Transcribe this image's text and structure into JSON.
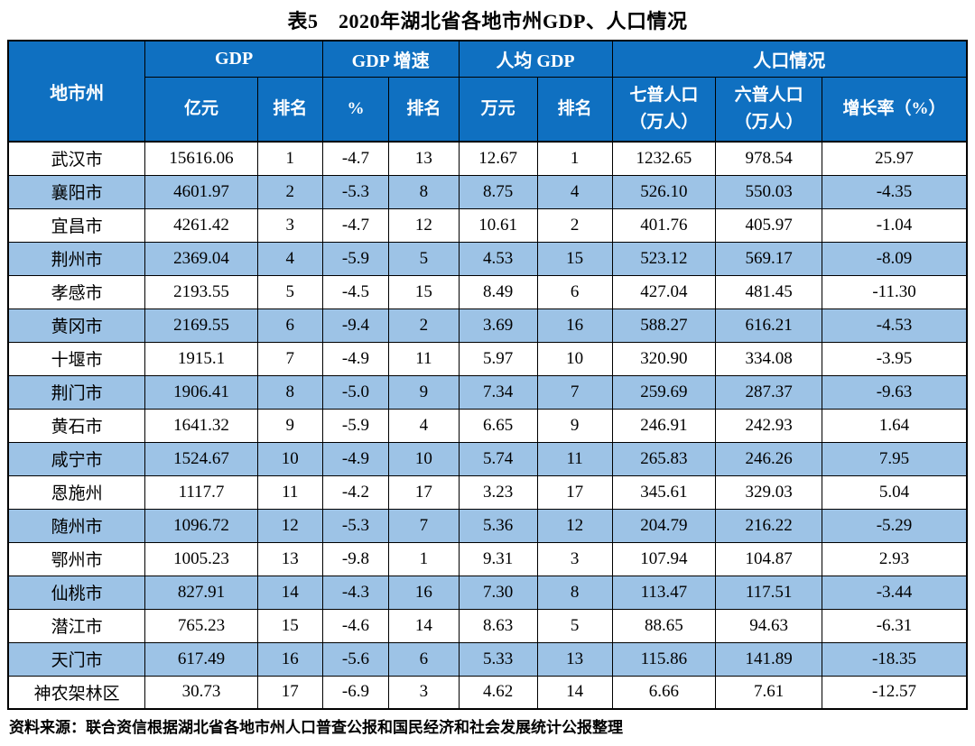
{
  "title": "表5　2020年湖北省各地市州GDP、人口情况",
  "source_note": "资料来源：联合资信根据湖北省各地市州人口普查公报和国民经济和社会发展统计公报整理",
  "colors": {
    "header_bg": "#0F70C1",
    "row_alt_bg": "#9DC3E6",
    "row_bg": "#FFFFFF",
    "border": "#000000"
  },
  "table": {
    "group_headers": [
      {
        "label": "地市州",
        "colspan": 1,
        "rowspan": 2
      },
      {
        "label": "GDP",
        "colspan": 2,
        "rowspan": 1
      },
      {
        "label": "GDP 增速",
        "colspan": 2,
        "rowspan": 1
      },
      {
        "label": "人均 GDP",
        "colspan": 2,
        "rowspan": 1
      },
      {
        "label": "人口情况",
        "colspan": 3,
        "rowspan": 1
      }
    ],
    "sub_headers": [
      "亿元",
      "排名",
      "%",
      "排名",
      "万元",
      "排名",
      "七普人口\n（万人）",
      "六普人口\n（万人）",
      "增长率（%）"
    ],
    "rows": [
      [
        "武汉市",
        "15616.06",
        "1",
        "-4.7",
        "13",
        "12.67",
        "1",
        "1232.65",
        "978.54",
        "25.97"
      ],
      [
        "襄阳市",
        "4601.97",
        "2",
        "-5.3",
        "8",
        "8.75",
        "4",
        "526.10",
        "550.03",
        "-4.35"
      ],
      [
        "宜昌市",
        "4261.42",
        "3",
        "-4.7",
        "12",
        "10.61",
        "2",
        "401.76",
        "405.97",
        "-1.04"
      ],
      [
        "荆州市",
        "2369.04",
        "4",
        "-5.9",
        "5",
        "4.53",
        "15",
        "523.12",
        "569.17",
        "-8.09"
      ],
      [
        "孝感市",
        "2193.55",
        "5",
        "-4.5",
        "15",
        "8.49",
        "6",
        "427.04",
        "481.45",
        "-11.30"
      ],
      [
        "黄冈市",
        "2169.55",
        "6",
        "-9.4",
        "2",
        "3.69",
        "16",
        "588.27",
        "616.21",
        "-4.53"
      ],
      [
        "十堰市",
        "1915.1",
        "7",
        "-4.9",
        "11",
        "5.97",
        "10",
        "320.90",
        "334.08",
        "-3.95"
      ],
      [
        "荆门市",
        "1906.41",
        "8",
        "-5.0",
        "9",
        "7.34",
        "7",
        "259.69",
        "287.37",
        "-9.63"
      ],
      [
        "黄石市",
        "1641.32",
        "9",
        "-5.9",
        "4",
        "6.65",
        "9",
        "246.91",
        "242.93",
        "1.64"
      ],
      [
        "咸宁市",
        "1524.67",
        "10",
        "-4.9",
        "10",
        "5.74",
        "11",
        "265.83",
        "246.26",
        "7.95"
      ],
      [
        "恩施州",
        "1117.7",
        "11",
        "-4.2",
        "17",
        "3.23",
        "17",
        "345.61",
        "329.03",
        "5.04"
      ],
      [
        "随州市",
        "1096.72",
        "12",
        "-5.3",
        "7",
        "5.36",
        "12",
        "204.79",
        "216.22",
        "-5.29"
      ],
      [
        "鄂州市",
        "1005.23",
        "13",
        "-9.8",
        "1",
        "9.31",
        "3",
        "107.94",
        "104.87",
        "2.93"
      ],
      [
        "仙桃市",
        "827.91",
        "14",
        "-4.3",
        "16",
        "7.30",
        "8",
        "113.47",
        "117.51",
        "-3.44"
      ],
      [
        "潜江市",
        "765.23",
        "15",
        "-4.6",
        "14",
        "8.63",
        "5",
        "88.65",
        "94.63",
        "-6.31"
      ],
      [
        "天门市",
        "617.49",
        "16",
        "-5.6",
        "6",
        "5.33",
        "13",
        "115.86",
        "141.89",
        "-18.35"
      ],
      [
        "神农架林区",
        "30.73",
        "17",
        "-6.9",
        "3",
        "4.62",
        "14",
        "6.66",
        "7.61",
        "-12.57"
      ]
    ],
    "col_widths_pct": [
      14.3,
      11.7,
      6.8,
      6.9,
      7.3,
      8.2,
      7.8,
      10.8,
      11.1,
      15.1
    ]
  }
}
